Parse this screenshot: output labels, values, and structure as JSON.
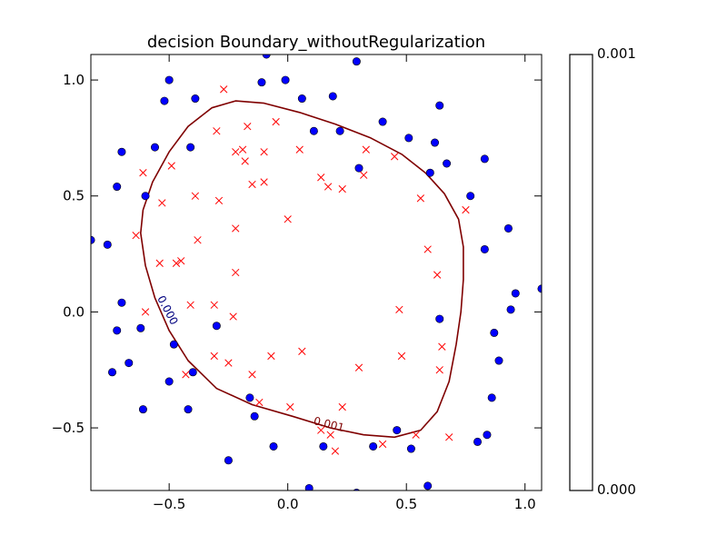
{
  "chart_data": {
    "type": "scatter",
    "title": "decision Boundary_withoutRegularization",
    "xlabel": "",
    "ylabel": "",
    "xlim": [
      -0.83,
      1.07
    ],
    "ylim": [
      -0.77,
      1.11
    ],
    "xticks": [
      -0.5,
      0.0,
      0.5,
      1.0
    ],
    "xtick_labels": [
      "−0.5",
      "0.0",
      "0.5",
      "1.0"
    ],
    "yticks": [
      -0.5,
      0.0,
      0.5,
      1.0
    ],
    "ytick_labels": [
      "−0.5",
      "0.0",
      "0.5",
      "1.0"
    ],
    "grid": false,
    "colorbar": {
      "min_label": "0.000",
      "max_label": "0.001"
    },
    "contour_labels": [
      "0.000",
      "0.001"
    ],
    "series": [
      {
        "marker": "circle",
        "color": "#0000ff",
        "points": [
          [
            -0.83,
            0.31
          ],
          [
            -0.76,
            0.29
          ],
          [
            -0.74,
            -0.26
          ],
          [
            -0.72,
            -0.08
          ],
          [
            -0.72,
            0.54
          ],
          [
            -0.7,
            0.69
          ],
          [
            -0.7,
            0.04
          ],
          [
            -0.67,
            -0.22
          ],
          [
            -0.62,
            -0.07
          ],
          [
            -0.61,
            -0.42
          ],
          [
            -0.6,
            0.5
          ],
          [
            -0.56,
            0.71
          ],
          [
            -0.52,
            0.91
          ],
          [
            -0.5,
            1.0
          ],
          [
            -0.5,
            -0.3
          ],
          [
            -0.48,
            -0.14
          ],
          [
            -0.42,
            -0.42
          ],
          [
            -0.41,
            0.71
          ],
          [
            -0.4,
            -0.26
          ],
          [
            -0.39,
            0.92
          ],
          [
            -0.3,
            -0.06
          ],
          [
            -0.25,
            -0.64
          ],
          [
            -0.16,
            -0.37
          ],
          [
            -0.14,
            -0.45
          ],
          [
            -0.11,
            0.99
          ],
          [
            -0.09,
            1.11
          ],
          [
            -0.06,
            -0.58
          ],
          [
            -0.01,
            1.0
          ],
          [
            0.06,
            0.92
          ],
          [
            0.09,
            -0.76
          ],
          [
            0.11,
            0.78
          ],
          [
            0.15,
            -0.58
          ],
          [
            0.19,
            0.93
          ],
          [
            0.22,
            0.78
          ],
          [
            0.29,
            1.08
          ],
          [
            0.29,
            -0.78
          ],
          [
            0.3,
            0.62
          ],
          [
            0.36,
            -0.58
          ],
          [
            0.4,
            0.82
          ],
          [
            0.46,
            -0.51
          ],
          [
            0.51,
            0.75
          ],
          [
            0.52,
            -0.59
          ],
          [
            0.59,
            -0.75
          ],
          [
            0.6,
            0.6
          ],
          [
            0.62,
            0.73
          ],
          [
            0.64,
            0.89
          ],
          [
            0.64,
            -0.03
          ],
          [
            0.67,
            0.64
          ],
          [
            0.77,
            0.5
          ],
          [
            0.8,
            -0.56
          ],
          [
            0.83,
            0.66
          ],
          [
            0.83,
            0.27
          ],
          [
            0.84,
            -0.53
          ],
          [
            0.86,
            -0.37
          ],
          [
            0.87,
            -0.09
          ],
          [
            0.89,
            -0.21
          ],
          [
            0.93,
            0.36
          ],
          [
            0.94,
            0.01
          ],
          [
            0.96,
            0.08
          ],
          [
            1.07,
            0.1
          ]
        ]
      },
      {
        "marker": "x",
        "color": "#ff0000",
        "points": [
          [
            -0.64,
            0.33
          ],
          [
            -0.61,
            0.6
          ],
          [
            -0.6,
            0.0
          ],
          [
            -0.54,
            0.21
          ],
          [
            -0.53,
            0.47
          ],
          [
            -0.49,
            0.63
          ],
          [
            -0.47,
            0.21
          ],
          [
            -0.45,
            0.22
          ],
          [
            -0.43,
            -0.27
          ],
          [
            -0.41,
            0.03
          ],
          [
            -0.39,
            0.5
          ],
          [
            -0.38,
            0.31
          ],
          [
            -0.31,
            0.03
          ],
          [
            -0.31,
            -0.19
          ],
          [
            -0.3,
            0.78
          ],
          [
            -0.29,
            0.48
          ],
          [
            -0.27,
            0.96
          ],
          [
            -0.25,
            -0.22
          ],
          [
            -0.23,
            -0.02
          ],
          [
            -0.22,
            0.69
          ],
          [
            -0.22,
            0.36
          ],
          [
            -0.22,
            0.17
          ],
          [
            -0.19,
            0.7
          ],
          [
            -0.18,
            0.65
          ],
          [
            -0.17,
            0.8
          ],
          [
            -0.15,
            0.55
          ],
          [
            -0.15,
            -0.27
          ],
          [
            -0.12,
            -0.39
          ],
          [
            -0.1,
            0.69
          ],
          [
            -0.1,
            0.56
          ],
          [
            -0.07,
            -0.19
          ],
          [
            -0.05,
            0.82
          ],
          [
            0.0,
            0.4
          ],
          [
            0.01,
            -0.41
          ],
          [
            0.05,
            0.7
          ],
          [
            0.06,
            -0.17
          ],
          [
            0.14,
            0.58
          ],
          [
            0.14,
            -0.51
          ],
          [
            0.17,
            0.54
          ],
          [
            0.18,
            -0.53
          ],
          [
            0.2,
            -0.6
          ],
          [
            0.23,
            0.53
          ],
          [
            0.23,
            -0.41
          ],
          [
            0.3,
            -0.24
          ],
          [
            0.32,
            0.59
          ],
          [
            0.33,
            0.7
          ],
          [
            0.4,
            -0.57
          ],
          [
            0.45,
            0.67
          ],
          [
            0.47,
            0.01
          ],
          [
            0.48,
            -0.19
          ],
          [
            0.54,
            -0.53
          ],
          [
            0.56,
            0.49
          ],
          [
            0.59,
            0.27
          ],
          [
            0.63,
            0.16
          ],
          [
            0.64,
            -0.25
          ],
          [
            0.65,
            -0.15
          ],
          [
            0.68,
            -0.54
          ],
          [
            0.75,
            0.44
          ]
        ]
      }
    ],
    "boundary": {
      "color": "#7f0000",
      "points": [
        [
          -0.61,
          0.44
        ],
        [
          -0.62,
          0.34
        ],
        [
          -0.6,
          0.2
        ],
        [
          -0.56,
          0.06
        ],
        [
          -0.5,
          -0.08
        ],
        [
          -0.42,
          -0.21
        ],
        [
          -0.3,
          -0.33
        ],
        [
          -0.15,
          -0.4
        ],
        [
          0.02,
          -0.45
        ],
        [
          0.18,
          -0.5
        ],
        [
          0.32,
          -0.53
        ],
        [
          0.45,
          -0.54
        ],
        [
          0.56,
          -0.51
        ],
        [
          0.63,
          -0.43
        ],
        [
          0.68,
          -0.3
        ],
        [
          0.71,
          -0.14
        ],
        [
          0.73,
          0.0
        ],
        [
          0.74,
          0.14
        ],
        [
          0.74,
          0.28
        ],
        [
          0.72,
          0.4
        ],
        [
          0.66,
          0.51
        ],
        [
          0.58,
          0.6
        ],
        [
          0.48,
          0.68
        ],
        [
          0.35,
          0.75
        ],
        [
          0.2,
          0.81
        ],
        [
          0.05,
          0.86
        ],
        [
          -0.1,
          0.9
        ],
        [
          -0.22,
          0.91
        ],
        [
          -0.32,
          0.88
        ],
        [
          -0.42,
          0.8
        ],
        [
          -0.5,
          0.69
        ],
        [
          -0.57,
          0.56
        ],
        [
          -0.61,
          0.44
        ]
      ]
    }
  }
}
